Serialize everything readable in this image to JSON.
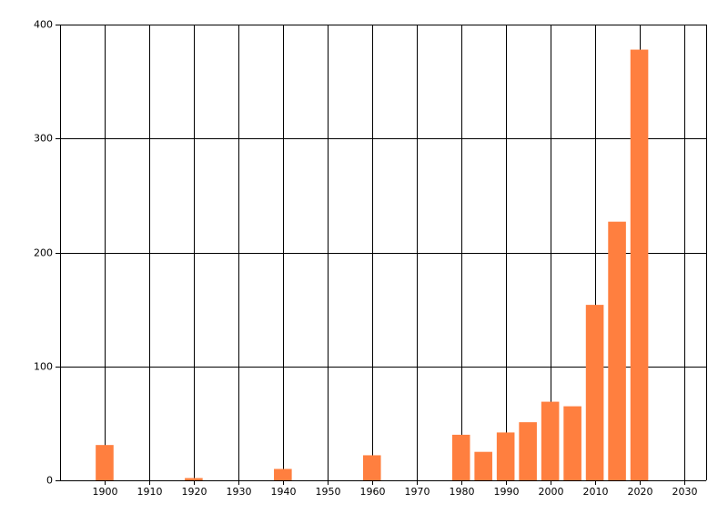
{
  "chart_data": {
    "type": "bar",
    "x": [
      1900,
      1920,
      1940,
      1960,
      1980,
      1985,
      1990,
      1995,
      2000,
      2005,
      2010,
      2015,
      2020
    ],
    "values": [
      31,
      2,
      10,
      22,
      40,
      25,
      42,
      51,
      69,
      65,
      154,
      227,
      378
    ],
    "color": "#ff7f3f",
    "xlim": [
      1890,
      2035
    ],
    "xticks": [
      1900,
      1910,
      1920,
      1930,
      1940,
      1950,
      1960,
      1970,
      1980,
      1990,
      2000,
      2010,
      2020,
      2030
    ],
    "ylim": [
      0,
      400
    ],
    "yticks": [
      0,
      100,
      200,
      300,
      400
    ],
    "grid": true
  }
}
